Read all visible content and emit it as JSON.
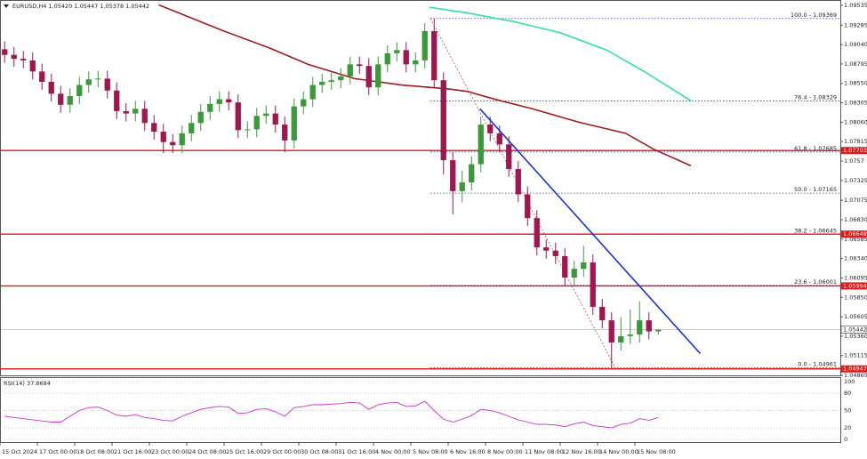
{
  "chart_data": {
    "type": "candlestick",
    "title": "EURUSD,H4  1.05420 1.05447 1.05378 1.05442",
    "up_color": "#3a9a3a",
    "down_color": "#a0164e",
    "open": [
      1.0898,
      1.0891,
      1.0886,
      1.0884,
      1.087,
      1.0857,
      1.0842,
      1.0828,
      1.0839,
      1.0853,
      1.086,
      1.0861,
      1.0846,
      1.082,
      1.0817,
      1.0823,
      1.0805,
      1.0794,
      1.0781,
      1.0777,
      1.0792,
      1.0805,
      1.0819,
      1.0829,
      1.0835,
      1.0831,
      1.0796,
      1.0797,
      1.0814,
      1.0817,
      1.0803,
      1.0783,
      1.0826,
      1.0835,
      1.0853,
      1.0857,
      1.0859,
      1.0864,
      1.0879,
      1.0877,
      1.085,
      1.0879,
      1.0893,
      1.0897,
      1.0879,
      1.0884,
      1.0921,
      1.0859,
      1.0758,
      1.0719,
      1.073,
      1.0753,
      1.0803,
      1.0792,
      1.0778,
      1.0747,
      1.0715,
      1.0685,
      1.0648,
      1.0644,
      1.0637,
      1.061,
      1.0621,
      1.0629,
      1.0573,
      1.0556,
      1.0528,
      1.0536,
      1.0538,
      1.0556,
      1.0542
    ],
    "high": [
      1.0908,
      1.0901,
      1.0896,
      1.0894,
      1.088,
      1.0867,
      1.0852,
      1.0849,
      1.0863,
      1.087,
      1.0871,
      1.0871,
      1.0856,
      1.083,
      1.0833,
      1.0833,
      1.0815,
      1.0804,
      1.0791,
      1.0802,
      1.0815,
      1.0829,
      1.0839,
      1.0845,
      1.0845,
      1.0841,
      1.0807,
      1.0824,
      1.0827,
      1.0827,
      1.0813,
      1.0836,
      1.0845,
      1.0863,
      1.0867,
      1.0869,
      1.0874,
      1.0889,
      1.0889,
      1.0887,
      1.0889,
      1.0903,
      1.0907,
      1.0907,
      1.0894,
      1.0931,
      1.09369,
      1.0869,
      1.0768,
      1.0745,
      1.0763,
      1.0813,
      1.0813,
      1.0802,
      1.0788,
      1.0757,
      1.0725,
      1.0695,
      1.0658,
      1.0654,
      1.0647,
      1.0631,
      1.065,
      1.0639,
      1.0583,
      1.0566,
      1.056,
      1.057,
      1.058,
      1.0566,
      1.05447
    ],
    "low": [
      1.0881,
      1.0876,
      1.0874,
      1.086,
      1.0847,
      1.0832,
      1.0818,
      1.0818,
      1.0829,
      1.0843,
      1.085,
      1.0836,
      1.081,
      1.0807,
      1.0807,
      1.0795,
      1.0784,
      1.0767,
      1.0767,
      1.0767,
      1.0782,
      1.0795,
      1.0809,
      1.0819,
      1.0821,
      1.0786,
      1.0786,
      1.0787,
      1.0804,
      1.0793,
      1.0768,
      1.0773,
      1.0816,
      1.0825,
      1.0843,
      1.0847,
      1.0849,
      1.0854,
      1.0867,
      1.084,
      1.084,
      1.0869,
      1.0883,
      1.0869,
      1.0869,
      1.0874,
      1.0849,
      1.074,
      1.069,
      1.0705,
      1.072,
      1.0743,
      1.0782,
      1.0768,
      1.0737,
      1.0705,
      1.0675,
      1.0638,
      1.0634,
      1.0627,
      1.06,
      1.06,
      1.0611,
      1.0563,
      1.0546,
      1.04961,
      1.0518,
      1.0526,
      1.0528,
      1.0532,
      1.05378
    ],
    "close": [
      1.0891,
      1.0886,
      1.0884,
      1.087,
      1.0857,
      1.0842,
      1.0828,
      1.0839,
      1.0853,
      1.086,
      1.0861,
      1.0846,
      1.082,
      1.0817,
      1.0823,
      1.0805,
      1.0794,
      1.0781,
      1.0777,
      1.0792,
      1.0805,
      1.0819,
      1.0829,
      1.0835,
      1.0831,
      1.0796,
      1.0797,
      1.0814,
      1.0817,
      1.0803,
      1.0783,
      1.0826,
      1.0835,
      1.0853,
      1.0857,
      1.0859,
      1.0864,
      1.0879,
      1.0877,
      1.085,
      1.0879,
      1.0893,
      1.0897,
      1.0879,
      1.0884,
      1.0921,
      1.0859,
      1.0758,
      1.0719,
      1.073,
      1.0753,
      1.0803,
      1.0792,
      1.0778,
      1.0747,
      1.0715,
      1.0685,
      1.0648,
      1.0644,
      1.0637,
      1.061,
      1.0621,
      1.0629,
      1.0573,
      1.0556,
      1.0528,
      1.0536,
      1.0538,
      1.0556,
      1.0542,
      1.05442
    ],
    "xlim": [
      0,
      90
    ],
    "xticks": [
      {
        "value": 0,
        "label": "15 Oct 2024"
      },
      {
        "value": 4,
        "label": "17 Oct 00:00"
      },
      {
        "value": 8,
        "label": "18 Oct 08:00"
      },
      {
        "value": 12,
        "label": "21 Oct 16:00"
      },
      {
        "value": 16,
        "label": "23 Oct 00:00"
      },
      {
        "value": 20,
        "label": "24 Oct 08:00"
      },
      {
        "value": 24,
        "label": "25 Oct 16:00"
      },
      {
        "value": 28,
        "label": "29 Oct 00:00"
      },
      {
        "value": 32,
        "label": "30 Oct 08:00"
      },
      {
        "value": 36,
        "label": "31 Oct 16:00"
      },
      {
        "value": 40,
        "label": "4 Nov 00:00"
      },
      {
        "value": 44,
        "label": "5 Nov 08:00"
      },
      {
        "value": 48,
        "label": "6 Nov 16:00"
      },
      {
        "value": 52,
        "label": "8 Nov 00:00"
      },
      {
        "value": 56,
        "label": "11 Nov 08:00"
      },
      {
        "value": 60,
        "label": "12 Nov 16:00"
      },
      {
        "value": 64,
        "label": "14 Nov 00:00"
      },
      {
        "value": 68,
        "label": "15 Nov 08:00"
      }
    ],
    "ylim": [
      1.04865,
      1.09535
    ],
    "yticks": [
      1.09535,
      1.09285,
      {
        "value": 1.0904,
        "label": "1.09040"
      },
      1.08795,
      {
        "value": 1.0855,
        "label": "1.08550"
      },
      1.08305,
      {
        "value": 1.0806,
        "label": "1.08060"
      },
      1.07815,
      1.0757,
      1.07325,
      1.07075,
      {
        "value": 1.0683,
        "label": "1.06830"
      },
      1.06585,
      {
        "value": 1.0634,
        "label": "1.06340"
      },
      1.06095,
      {
        "value": 1.0585,
        "label": "1.05850"
      },
      1.05605,
      {
        "value": 1.0536,
        "label": "1.05360"
      },
      1.05115,
      1.04865
    ],
    "moving_averages": [
      {
        "color": "#a01c1c",
        "x": [
          17,
          24,
          29,
          33,
          38,
          43,
          48,
          50,
          53,
          57,
          62,
          67,
          70,
          74
        ],
        "values": [
          1.0954,
          1.0921,
          1.0899,
          1.0879,
          1.0861,
          1.0853,
          1.0848,
          1.0845,
          1.0835,
          1.0823,
          1.0806,
          1.0792,
          1.0772,
          1.0751
        ]
      },
      {
        "color": "#2ee0a0",
        "x": [
          46,
          50,
          55,
          60,
          65,
          69,
          74
        ],
        "values": [
          1.0951,
          1.0944,
          1.0933,
          1.0919,
          1.0897,
          1.087,
          1.0833
        ]
      }
    ],
    "trendline": {
      "color": "#1a2fe0",
      "x": [
        51.4,
        75
      ],
      "values": [
        1.0823,
        1.0514
      ]
    },
    "fibonacci": {
      "color": "#e04040",
      "level_color": "#2a3ad0",
      "x": [
        46.1,
        65.9
      ],
      "values": [
        1.09369,
        1.04961
      ],
      "levels": [
        {
          "value": 1.09369,
          "label": "100.0 - 1.09369"
        },
        {
          "value": 1.08329,
          "label": "76.4 - 1.08329"
        },
        {
          "value": 1.07685,
          "label": "61.8 - 1.07685"
        },
        {
          "value": 1.07165,
          "label": "50.0 - 1.07165"
        },
        {
          "value": 1.06645,
          "label": "38.2 - 1.06645"
        },
        {
          "value": 1.06001,
          "label": "23.6 - 1.06001"
        },
        {
          "value": 1.04961,
          "label": "0.0 - 1.04961"
        }
      ]
    },
    "levels": [
      1.07703,
      1.06648,
      1.05994,
      1.04947
    ],
    "level_color": "#e01818",
    "last_price": 1.05442,
    "rsi": {
      "title": "RSI(14) 37.8684",
      "color": "#c832c8",
      "ylim": [
        0,
        100
      ],
      "yticks": [
        100,
        80,
        50,
        20,
        0
      ],
      "values": [
        40,
        38,
        36,
        34,
        32,
        30,
        30,
        40,
        50,
        55,
        56,
        50,
        42,
        40,
        43,
        38,
        36,
        33,
        32,
        40,
        46,
        52,
        55,
        57,
        56,
        45,
        46,
        52,
        53,
        48,
        40,
        55,
        57,
        60,
        60,
        61,
        62,
        64,
        63,
        52,
        60,
        63,
        64,
        57,
        58,
        66,
        50,
        35,
        30,
        35,
        41,
        52,
        50,
        46,
        40,
        34,
        30,
        26,
        26,
        25,
        22,
        27,
        30,
        24,
        22,
        20,
        26,
        28,
        36,
        33,
        38
      ]
    }
  }
}
